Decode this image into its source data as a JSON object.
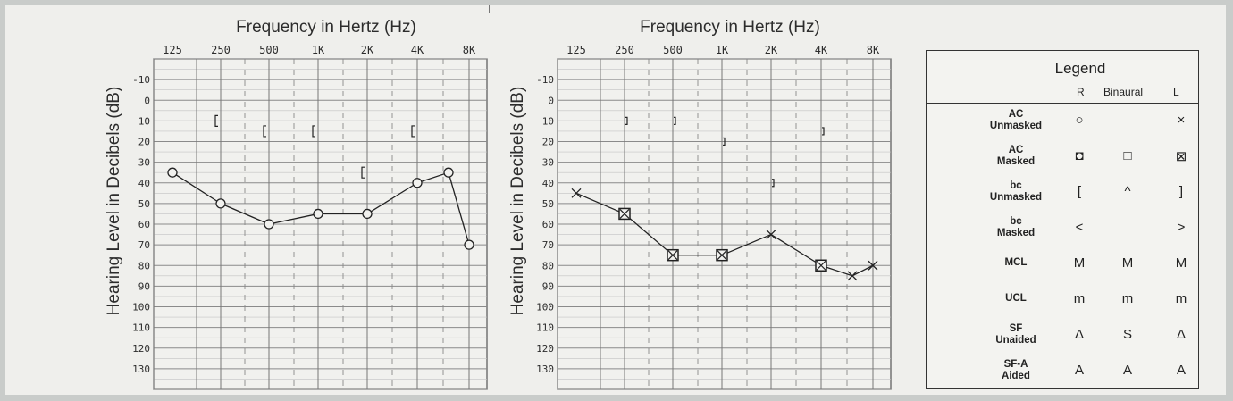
{
  "charts": {
    "left": {
      "title": "Frequency in Hertz (Hz)",
      "ylabel": "Hearing Level in Decibels (dB)"
    },
    "right": {
      "title": "Frequency in Hertz (Hz)",
      "ylabel": "Hearing Level in Decibels (dB)"
    }
  },
  "chart_data": [
    {
      "type": "line",
      "title": "Frequency in Hertz (Hz)",
      "xlabel": "Frequency in Hertz (Hz)",
      "ylabel": "Hearing Level in Decibels (dB)",
      "x_ticks": [
        "125",
        "250",
        "500",
        "1K",
        "2K",
        "4K",
        "8K"
      ],
      "x_scale": "log",
      "y_ticks": [
        -10,
        0,
        10,
        20,
        30,
        40,
        50,
        60,
        70,
        80,
        90,
        100,
        110,
        120,
        130
      ],
      "ylim": [
        -20,
        140
      ],
      "y_inverted": true,
      "grid": true,
      "series": [
        {
          "marker": "circle",
          "connected": true,
          "points": [
            {
              "x": 125,
              "y": 35
            },
            {
              "x": 250,
              "y": 50
            },
            {
              "x": 500,
              "y": 60
            },
            {
              "x": 1000,
              "y": 55
            },
            {
              "x": 2000,
              "y": 55
            },
            {
              "x": 4000,
              "y": 40
            },
            {
              "x": 6000,
              "y": 35
            },
            {
              "x": 8000,
              "y": 70
            }
          ]
        },
        {
          "marker": "bracket-left",
          "connected": false,
          "points": [
            {
              "x": 250,
              "y": 10
            },
            {
              "x": 500,
              "y": 15
            },
            {
              "x": 1000,
              "y": 15
            },
            {
              "x": 2000,
              "y": 35
            },
            {
              "x": 4000,
              "y": 15
            }
          ]
        }
      ]
    },
    {
      "type": "line",
      "title": "Frequency in Hertz (Hz)",
      "xlabel": "Frequency in Hertz (Hz)",
      "ylabel": "Hearing Level in Decibels (dB)",
      "x_ticks": [
        "125",
        "250",
        "500",
        "1K",
        "2K",
        "4K",
        "8K"
      ],
      "x_scale": "log",
      "y_ticks": [
        -10,
        0,
        10,
        20,
        30,
        40,
        50,
        60,
        70,
        80,
        90,
        100,
        110,
        120,
        130
      ],
      "ylim": [
        -20,
        140
      ],
      "y_inverted": true,
      "grid": true,
      "series": [
        {
          "marker": "cross-or-boxed-cross",
          "connected": true,
          "points": [
            {
              "x": 125,
              "y": 45,
              "marker": "cross"
            },
            {
              "x": 250,
              "y": 55,
              "marker": "boxed-cross"
            },
            {
              "x": 500,
              "y": 75,
              "marker": "boxed-cross"
            },
            {
              "x": 1000,
              "y": 75,
              "marker": "boxed-cross"
            },
            {
              "x": 2000,
              "y": 65,
              "marker": "cross"
            },
            {
              "x": 4000,
              "y": 80,
              "marker": "boxed-cross"
            },
            {
              "x": 6000,
              "y": 85,
              "marker": "cross"
            },
            {
              "x": 8000,
              "y": 80,
              "marker": "cross"
            }
          ]
        },
        {
          "marker": "bracket-right",
          "connected": false,
          "points": [
            {
              "x": 250,
              "y": 10
            },
            {
              "x": 500,
              "y": 10
            },
            {
              "x": 1000,
              "y": 20
            },
            {
              "x": 2000,
              "y": 40
            },
            {
              "x": 4000,
              "y": 15
            }
          ]
        }
      ]
    }
  ],
  "legend": {
    "title": "Legend",
    "columns": [
      "R",
      "Binaural",
      "L"
    ],
    "rows": [
      {
        "label_line1": "AC",
        "label_line2": "Unmasked",
        "r": "○",
        "b": "",
        "l": "×"
      },
      {
        "label_line1": "AC",
        "label_line2": "Masked",
        "r": "◘",
        "b": "□",
        "l": "⊠"
      },
      {
        "label_line1": "bc",
        "label_line2": "Unmasked",
        "r": "[",
        "b": "^",
        "l": "]"
      },
      {
        "label_line1": "bc",
        "label_line2": "Masked",
        "r": "<",
        "b": "",
        "l": ">"
      },
      {
        "label_line1": "MCL",
        "label_line2": "",
        "r": "M",
        "b": "M",
        "l": "M"
      },
      {
        "label_line1": "UCL",
        "label_line2": "",
        "r": "m",
        "b": "m",
        "l": "m"
      },
      {
        "label_line1": "SF",
        "label_line2": "Unaided",
        "r": "Δ",
        "b": "S",
        "l": "Δ"
      },
      {
        "label_line1": "SF-A",
        "label_line2": "Aided",
        "r": "A",
        "b": "A",
        "l": "A"
      }
    ]
  }
}
